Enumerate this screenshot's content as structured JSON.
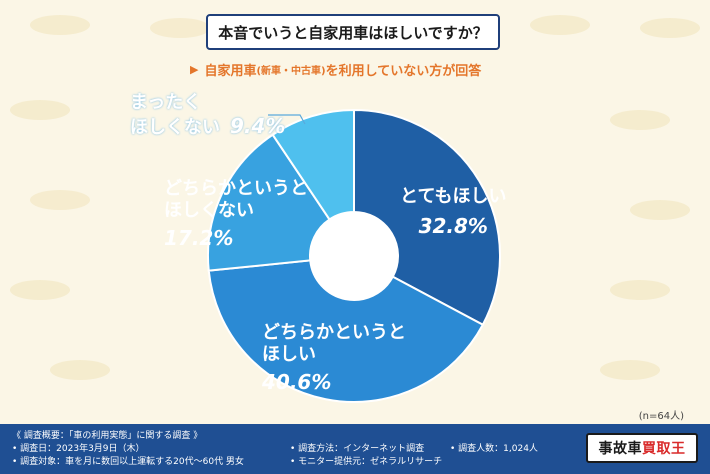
{
  "title": "本音でいうと自家用車はほしいですか？",
  "subtitle": {
    "part1": "自家用車",
    "part2": "(新車・中古車)",
    "part3": "を利用していない方が回答"
  },
  "n_label": "(n=64人)",
  "colors": {
    "slice_very": "#1f5fa5",
    "slice_somewhat": "#2b8ad4",
    "slice_somewhat_not": "#38a2e0",
    "slice_not": "#4fc0ee",
    "footer": "#1f4f93",
    "accent": "#e4762b"
  },
  "chart_data": {
    "type": "pie",
    "title": "本音でいうと自家用車はほしいですか？",
    "categories": [
      "とてもほしい",
      "どちらかというとほしい",
      "どちらかというとほしくない",
      "まったくほしくない"
    ],
    "values": [
      32.8,
      40.6,
      17.2,
      9.4
    ],
    "unit": "%",
    "donut": true
  },
  "labels": {
    "very_line1": "とてもほしい",
    "very_pct": "32.8%",
    "somewhat_line1": "どちらかというと",
    "somewhat_line2": "ほしい",
    "somewhat_pct": "40.6%",
    "somewhat_not_line1": "どちらかというと",
    "somewhat_not_line2": "ほしくない",
    "somewhat_not_pct": "17.2%",
    "not_line1": "まったく",
    "not_line2": "ほしくない",
    "not_pct": "9.4%"
  },
  "footer": {
    "overview": "《 調査概要：「車の利用実態」に関する調査 》",
    "date": "• 調査日：2023年3月9日（木）",
    "target": "• 調査対象：車を月に数回以上運転する20代〜60代 男女",
    "method": "• 調査方法：インターネット調査",
    "provider": "• モニター提供元：ゼネラルリサーチ",
    "count": "• 調査人数：1,024人",
    "logo_a": "事故車",
    "logo_b": "買取王"
  }
}
